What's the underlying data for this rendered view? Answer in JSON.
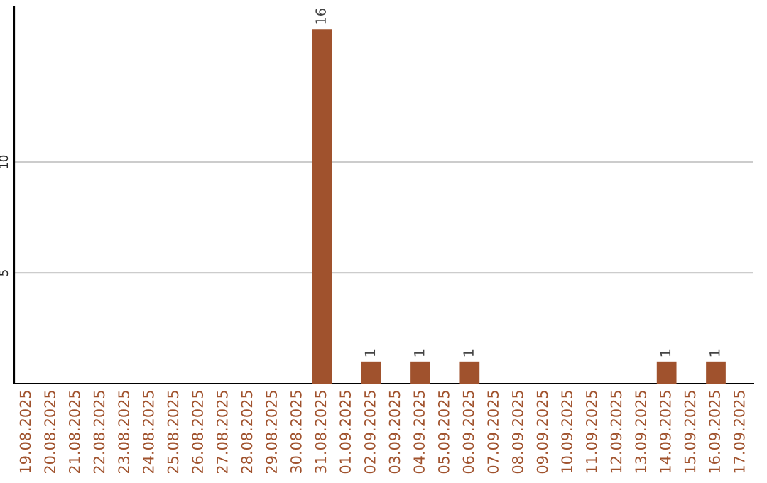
{
  "chart_data": {
    "type": "bar",
    "categories": [
      "19.08.2025",
      "20.08.2025",
      "21.08.2025",
      "22.08.2025",
      "23.08.2025",
      "24.08.2025",
      "25.08.2025",
      "26.08.2025",
      "27.08.2025",
      "28.08.2025",
      "29.08.2025",
      "30.08.2025",
      "31.08.2025",
      "01.09.2025",
      "02.09.2025",
      "03.09.2025",
      "04.09.2025",
      "05.09.2025",
      "06.09.2025",
      "07.09.2025",
      "08.09.2025",
      "09.09.2025",
      "10.09.2025",
      "11.09.2025",
      "12.09.2025",
      "13.09.2025",
      "14.09.2025",
      "15.09.2025",
      "16.09.2025",
      "17.09.2025"
    ],
    "values": [
      0,
      0,
      0,
      0,
      0,
      0,
      0,
      0,
      0,
      0,
      0,
      0,
      16,
      0,
      1,
      0,
      1,
      0,
      1,
      0,
      0,
      0,
      0,
      0,
      0,
      0,
      1,
      0,
      1,
      0
    ],
    "value_labels": [
      null,
      null,
      null,
      null,
      null,
      null,
      null,
      null,
      null,
      null,
      null,
      null,
      "16",
      null,
      "1",
      null,
      "1",
      null,
      "1",
      null,
      null,
      null,
      null,
      null,
      null,
      null,
      "1",
      null,
      "1",
      null
    ],
    "color": "#a0522d",
    "ylim": [
      0,
      17
    ],
    "yticks": [
      5,
      10
    ],
    "grid": "y",
    "legend": false
  }
}
